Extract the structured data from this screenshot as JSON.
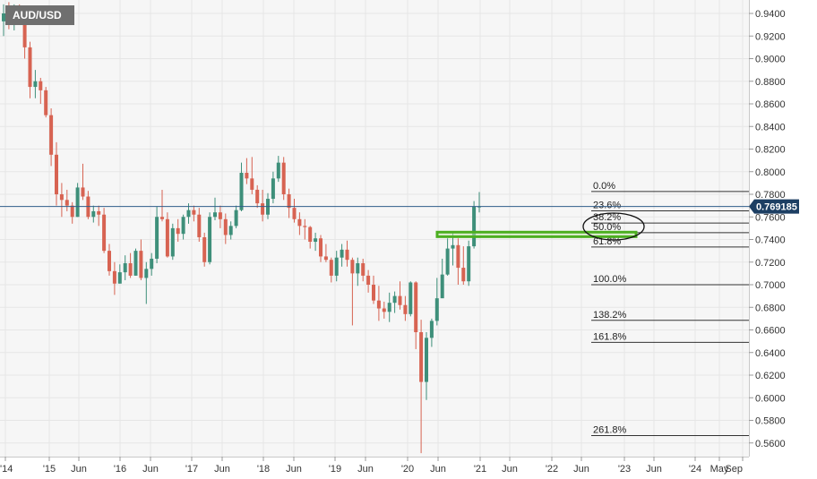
{
  "symbol": "AUD/USD",
  "current_price": "0.769185",
  "colors": {
    "up": "#3e8f7a",
    "down": "#d76352",
    "price_line": "#2f5d8a",
    "zone_stroke": "#4caf20",
    "zone_fill": "#cfe8b8",
    "grid": "#e6e6e6",
    "background": "#f6f6f6"
  },
  "chart_data": {
    "type": "candlestick",
    "title": "AUD/USD",
    "y_ticks": [
      "0.9400",
      "0.9200",
      "0.9000",
      "0.8800",
      "0.8600",
      "0.8400",
      "0.8200",
      "0.8000",
      "0.7800",
      "0.7600",
      "0.7400",
      "0.7200",
      "0.7000",
      "0.6800",
      "0.6600",
      "0.6400",
      "0.6200",
      "0.6000",
      "0.5800",
      "0.5600"
    ],
    "y_range": [
      0.552,
      0.948
    ],
    "x_ticks": [
      "'14",
      "'15",
      "Jun",
      "'16",
      "Jun",
      "'17",
      "Jun",
      "'18",
      "Jun",
      "'19",
      "Jun",
      "'20",
      "Jun",
      "'21",
      "Jun",
      "'22",
      "Jun",
      "'23",
      "Jun",
      "'24",
      "May",
      "Sep"
    ],
    "current_price_value": 0.769185,
    "fibonacci": [
      {
        "label": "0.0%",
        "price": 0.7825
      },
      {
        "label": "23.6%",
        "price": 0.7653
      },
      {
        "label": "38.2%",
        "price": 0.7546
      },
      {
        "label": "50.0%",
        "price": 0.746
      },
      {
        "label": "61.8%",
        "price": 0.7334
      },
      {
        "label": "100.0%",
        "price": 0.7
      },
      {
        "label": "138.2%",
        "price": 0.6685
      },
      {
        "label": "161.8%",
        "price": 0.649
      },
      {
        "label": "261.8%",
        "price": 0.5665
      }
    ],
    "highlight_zone": {
      "price_low": 0.7425,
      "price_high": 0.7465
    },
    "candles": [
      {
        "o": 0.933,
        "h": 0.948,
        "l": 0.92,
        "c": 0.94
      },
      {
        "o": 0.94,
        "h": 0.95,
        "l": 0.926,
        "c": 0.931
      },
      {
        "o": 0.931,
        "h": 0.948,
        "l": 0.925,
        "c": 0.945
      },
      {
        "o": 0.945,
        "h": 0.948,
        "l": 0.93,
        "c": 0.94
      },
      {
        "o": 0.94,
        "h": 0.945,
        "l": 0.9,
        "c": 0.91
      },
      {
        "o": 0.91,
        "h": 0.915,
        "l": 0.865,
        "c": 0.875
      },
      {
        "o": 0.875,
        "h": 0.89,
        "l": 0.865,
        "c": 0.88
      },
      {
        "o": 0.88,
        "h": 0.883,
        "l": 0.86,
        "c": 0.872
      },
      {
        "o": 0.872,
        "h": 0.875,
        "l": 0.848,
        "c": 0.85
      },
      {
        "o": 0.85,
        "h": 0.856,
        "l": 0.805,
        "c": 0.815
      },
      {
        "o": 0.815,
        "h": 0.826,
        "l": 0.77,
        "c": 0.78
      },
      {
        "o": 0.78,
        "h": 0.79,
        "l": 0.76,
        "c": 0.775
      },
      {
        "o": 0.775,
        "h": 0.784,
        "l": 0.765,
        "c": 0.77
      },
      {
        "o": 0.77,
        "h": 0.773,
        "l": 0.754,
        "c": 0.76
      },
      {
        "o": 0.76,
        "h": 0.79,
        "l": 0.76,
        "c": 0.786
      },
      {
        "o": 0.786,
        "h": 0.807,
        "l": 0.775,
        "c": 0.778
      },
      {
        "o": 0.778,
        "h": 0.783,
        "l": 0.758,
        "c": 0.76
      },
      {
        "o": 0.76,
        "h": 0.77,
        "l": 0.755,
        "c": 0.765
      },
      {
        "o": 0.765,
        "h": 0.77,
        "l": 0.752,
        "c": 0.762
      },
      {
        "o": 0.762,
        "h": 0.768,
        "l": 0.728,
        "c": 0.73
      },
      {
        "o": 0.73,
        "h": 0.736,
        "l": 0.708,
        "c": 0.712
      },
      {
        "o": 0.712,
        "h": 0.72,
        "l": 0.691,
        "c": 0.701
      },
      {
        "o": 0.701,
        "h": 0.718,
        "l": 0.701,
        "c": 0.711
      },
      {
        "o": 0.711,
        "h": 0.726,
        "l": 0.704,
        "c": 0.719
      },
      {
        "o": 0.719,
        "h": 0.728,
        "l": 0.706,
        "c": 0.708
      },
      {
        "o": 0.708,
        "h": 0.732,
        "l": 0.708,
        "c": 0.73
      },
      {
        "o": 0.73,
        "h": 0.74,
        "l": 0.704,
        "c": 0.706
      },
      {
        "o": 0.706,
        "h": 0.72,
        "l": 0.683,
        "c": 0.714
      },
      {
        "o": 0.714,
        "h": 0.728,
        "l": 0.708,
        "c": 0.723
      },
      {
        "o": 0.723,
        "h": 0.769,
        "l": 0.719,
        "c": 0.76
      },
      {
        "o": 0.76,
        "h": 0.784,
        "l": 0.756,
        "c": 0.758
      },
      {
        "o": 0.758,
        "h": 0.764,
        "l": 0.724,
        "c": 0.725
      },
      {
        "o": 0.725,
        "h": 0.754,
        "l": 0.722,
        "c": 0.75
      },
      {
        "o": 0.75,
        "h": 0.758,
        "l": 0.738,
        "c": 0.745
      },
      {
        "o": 0.745,
        "h": 0.762,
        "l": 0.74,
        "c": 0.76
      },
      {
        "o": 0.76,
        "h": 0.772,
        "l": 0.754,
        "c": 0.766
      },
      {
        "o": 0.766,
        "h": 0.77,
        "l": 0.756,
        "c": 0.762
      },
      {
        "o": 0.762,
        "h": 0.768,
        "l": 0.738,
        "c": 0.742
      },
      {
        "o": 0.742,
        "h": 0.746,
        "l": 0.716,
        "c": 0.72
      },
      {
        "o": 0.72,
        "h": 0.764,
        "l": 0.718,
        "c": 0.76
      },
      {
        "o": 0.76,
        "h": 0.777,
        "l": 0.757,
        "c": 0.764
      },
      {
        "o": 0.764,
        "h": 0.77,
        "l": 0.75,
        "c": 0.758
      },
      {
        "o": 0.758,
        "h": 0.763,
        "l": 0.736,
        "c": 0.744
      },
      {
        "o": 0.744,
        "h": 0.756,
        "l": 0.74,
        "c": 0.752
      },
      {
        "o": 0.752,
        "h": 0.77,
        "l": 0.75,
        "c": 0.766
      },
      {
        "o": 0.766,
        "h": 0.808,
        "l": 0.765,
        "c": 0.799
      },
      {
        "o": 0.799,
        "h": 0.812,
        "l": 0.789,
        "c": 0.794
      },
      {
        "o": 0.794,
        "h": 0.813,
        "l": 0.78,
        "c": 0.784
      },
      {
        "o": 0.784,
        "h": 0.788,
        "l": 0.768,
        "c": 0.772
      },
      {
        "o": 0.772,
        "h": 0.784,
        "l": 0.756,
        "c": 0.762
      },
      {
        "o": 0.762,
        "h": 0.781,
        "l": 0.758,
        "c": 0.776
      },
      {
        "o": 0.776,
        "h": 0.8,
        "l": 0.772,
        "c": 0.794
      },
      {
        "o": 0.794,
        "h": 0.814,
        "l": 0.791,
        "c": 0.808
      },
      {
        "o": 0.808,
        "h": 0.813,
        "l": 0.775,
        "c": 0.78
      },
      {
        "o": 0.78,
        "h": 0.785,
        "l": 0.759,
        "c": 0.768
      },
      {
        "o": 0.768,
        "h": 0.776,
        "l": 0.755,
        "c": 0.758
      },
      {
        "o": 0.758,
        "h": 0.764,
        "l": 0.744,
        "c": 0.752
      },
      {
        "o": 0.752,
        "h": 0.758,
        "l": 0.74,
        "c": 0.751
      },
      {
        "o": 0.751,
        "h": 0.752,
        "l": 0.732,
        "c": 0.738
      },
      {
        "o": 0.738,
        "h": 0.746,
        "l": 0.73,
        "c": 0.741
      },
      {
        "o": 0.741,
        "h": 0.744,
        "l": 0.72,
        "c": 0.725
      },
      {
        "o": 0.725,
        "h": 0.736,
        "l": 0.72,
        "c": 0.722
      },
      {
        "o": 0.722,
        "h": 0.724,
        "l": 0.702,
        "c": 0.708
      },
      {
        "o": 0.708,
        "h": 0.73,
        "l": 0.703,
        "c": 0.724
      },
      {
        "o": 0.724,
        "h": 0.736,
        "l": 0.716,
        "c": 0.731
      },
      {
        "o": 0.731,
        "h": 0.739,
        "l": 0.716,
        "c": 0.722
      },
      {
        "o": 0.722,
        "h": 0.724,
        "l": 0.664,
        "c": 0.71
      },
      {
        "o": 0.71,
        "h": 0.724,
        "l": 0.699,
        "c": 0.719
      },
      {
        "o": 0.719,
        "h": 0.723,
        "l": 0.703,
        "c": 0.708
      },
      {
        "o": 0.708,
        "h": 0.713,
        "l": 0.693,
        "c": 0.7
      },
      {
        "o": 0.7,
        "h": 0.708,
        "l": 0.683,
        "c": 0.686
      },
      {
        "o": 0.686,
        "h": 0.699,
        "l": 0.668,
        "c": 0.679
      },
      {
        "o": 0.679,
        "h": 0.685,
        "l": 0.67,
        "c": 0.676
      },
      {
        "o": 0.676,
        "h": 0.693,
        "l": 0.667,
        "c": 0.684
      },
      {
        "o": 0.684,
        "h": 0.694,
        "l": 0.675,
        "c": 0.69
      },
      {
        "o": 0.69,
        "h": 0.703,
        "l": 0.678,
        "c": 0.682
      },
      {
        "o": 0.682,
        "h": 0.69,
        "l": 0.668,
        "c": 0.674
      },
      {
        "o": 0.674,
        "h": 0.703,
        "l": 0.672,
        "c": 0.702
      },
      {
        "o": 0.702,
        "h": 0.703,
        "l": 0.643,
        "c": 0.658
      },
      {
        "o": 0.658,
        "h": 0.669,
        "l": 0.551,
        "c": 0.614
      },
      {
        "o": 0.614,
        "h": 0.658,
        "l": 0.598,
        "c": 0.653
      },
      {
        "o": 0.653,
        "h": 0.67,
        "l": 0.645,
        "c": 0.668
      },
      {
        "o": 0.668,
        "h": 0.706,
        "l": 0.664,
        "c": 0.688
      },
      {
        "o": 0.688,
        "h": 0.723,
        "l": 0.689,
        "c": 0.709
      },
      {
        "o": 0.709,
        "h": 0.741,
        "l": 0.708,
        "c": 0.732
      },
      {
        "o": 0.732,
        "h": 0.746,
        "l": 0.717,
        "c": 0.735
      },
      {
        "o": 0.735,
        "h": 0.741,
        "l": 0.7,
        "c": 0.715
      },
      {
        "o": 0.715,
        "h": 0.734,
        "l": 0.7,
        "c": 0.703
      },
      {
        "o": 0.703,
        "h": 0.739,
        "l": 0.699,
        "c": 0.734
      },
      {
        "o": 0.734,
        "h": 0.774,
        "l": 0.732,
        "c": 0.769
      },
      {
        "o": 0.769,
        "h": 0.782,
        "l": 0.764,
        "c": 0.7692
      }
    ]
  }
}
